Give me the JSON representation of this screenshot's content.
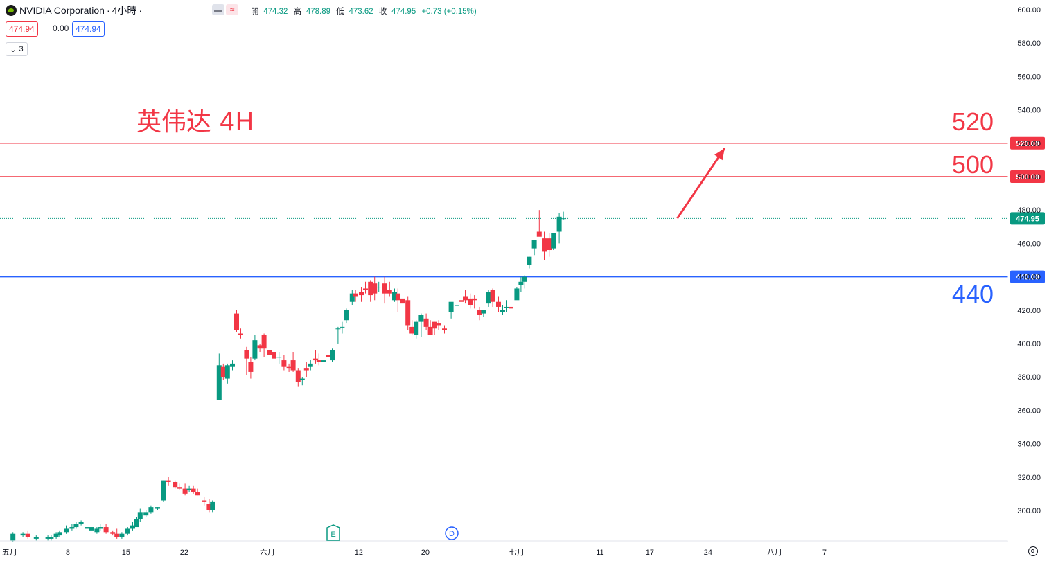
{
  "header": {
    "symbol": "NVIDIA Corporation",
    "interval": "4小時",
    "ohlc": {
      "open_label": "開=",
      "open": "474.32",
      "high_label": "高=",
      "high": "478.89",
      "low_label": "低=",
      "low": "473.62",
      "close_label": "收=",
      "close": "474.95",
      "change": "+0.73 (+0.15%)"
    },
    "sell_price": "474.94",
    "spread": "0.00",
    "buy_price": "474.94",
    "layers_count": "3",
    "compare_icon": "minus-icon",
    "indicator_icon": "wave-icon"
  },
  "colors": {
    "up": "#089981",
    "down": "#f23645",
    "resistance_line": "#f23645",
    "support_line": "#2962ff",
    "arrow": "#f23645",
    "annotation_red": "#f23645",
    "annotation_blue": "#2962ff"
  },
  "annotations": {
    "title": "英伟达 4H",
    "label_520": "520",
    "label_500": "500",
    "label_440": "440",
    "event_e": "E",
    "event_d": "D"
  },
  "chart_data": {
    "type": "candlestick",
    "ylim": [
      284,
      604
    ],
    "y_ticks": [
      "600.00",
      "580.00",
      "560.00",
      "540.00",
      "520.00",
      "500.00",
      "480.00",
      "460.00",
      "440.00",
      "420.00",
      "400.00",
      "380.00",
      "360.00",
      "340.00",
      "320.00",
      "300.00"
    ],
    "x_tick_labels": [
      "24",
      "五月",
      "8",
      "15",
      "22",
      "六月",
      "12",
      "20",
      "七月",
      "11",
      "17",
      "24",
      "八月",
      "7"
    ],
    "x_ticks": [
      {
        "label": "24",
        "day": -7
      },
      {
        "label": "五月",
        "day": 1
      },
      {
        "label": "8",
        "day": 8
      },
      {
        "label": "15",
        "day": 15
      },
      {
        "label": "22",
        "day": 22
      },
      {
        "label": "六月",
        "day": 32
      },
      {
        "label": "12",
        "day": 43
      },
      {
        "label": "20",
        "day": 51
      },
      {
        "label": "七月",
        "day": 62
      },
      {
        "label": "11",
        "day": 72
      },
      {
        "label": "17",
        "day": 78
      },
      {
        "label": "24",
        "day": 85
      },
      {
        "label": "八月",
        "day": 93
      },
      {
        "label": "7",
        "day": 99
      }
    ],
    "horizontal_lines": [
      {
        "value": 520,
        "label": "520.00",
        "color": "#f23645"
      },
      {
        "value": 500,
        "label": "500.00",
        "color": "#f23645"
      },
      {
        "value": 440,
        "label": "440.00",
        "color": "#2962ff"
      }
    ],
    "last_price": {
      "value": 474.95,
      "label": "474.95",
      "color": "#089981"
    },
    "arrow": {
      "from": {
        "day": 81.3,
        "value": 475
      },
      "to": {
        "day": 87,
        "value": 517
      }
    },
    "events": [
      {
        "label": "E",
        "day": 24.3
      },
      {
        "label": "D",
        "day": 39.6
      }
    ],
    "candles": [
      [
        1.4,
        282,
        287,
        281,
        286
      ],
      [
        2.6,
        285,
        287,
        284,
        286
      ],
      [
        3.2,
        286,
        288,
        283,
        284
      ],
      [
        4.2,
        283,
        285,
        282,
        284
      ],
      [
        5.6,
        283,
        285,
        282,
        284
      ],
      [
        6.0,
        283,
        285,
        282,
        284
      ],
      [
        6.6,
        284,
        287,
        283,
        286
      ],
      [
        7.0,
        285,
        288,
        284,
        287
      ],
      [
        7.8,
        287,
        291,
        286,
        289
      ],
      [
        8.5,
        289,
        292,
        288,
        290
      ],
      [
        9.0,
        290,
        293,
        289,
        292
      ],
      [
        9.6,
        292,
        294,
        291,
        293
      ],
      [
        10.3,
        289,
        291,
        288,
        290
      ],
      [
        10.8,
        288,
        291,
        287,
        290
      ],
      [
        11.5,
        287,
        290,
        286,
        289
      ],
      [
        11.9,
        289,
        292,
        288,
        290
      ],
      [
        12.6,
        290,
        292,
        286,
        287
      ],
      [
        13.4,
        287,
        288,
        285,
        286
      ],
      [
        13.9,
        286,
        289,
        283,
        284
      ],
      [
        14.5,
        284,
        287,
        283,
        286
      ],
      [
        15.2,
        286,
        290,
        285,
        289
      ],
      [
        15.8,
        289,
        293,
        288,
        291
      ],
      [
        16.3,
        290,
        296,
        290,
        295
      ],
      [
        16.7,
        295,
        301,
        293,
        299
      ],
      [
        17.4,
        297,
        300,
        296,
        299
      ],
      [
        18.0,
        299,
        303,
        298,
        302
      ],
      [
        18.8,
        301,
        302,
        300,
        302
      ],
      [
        19.5,
        306,
        318,
        305,
        318
      ],
      [
        20.1,
        318,
        320,
        315,
        317
      ],
      [
        20.9,
        317,
        318,
        313,
        314
      ],
      [
        21.4,
        314,
        316,
        312,
        313
      ],
      [
        22.1,
        313,
        316,
        309,
        310
      ],
      [
        22.6,
        312,
        315,
        311,
        313
      ],
      [
        23.1,
        313,
        315,
        310,
        311
      ],
      [
        23.6,
        311,
        313,
        309,
        309
      ],
      [
        24.4,
        306,
        308,
        303,
        305
      ],
      [
        25.0,
        304,
        307,
        299,
        300
      ],
      [
        25.4,
        300,
        306,
        299,
        305
      ],
      [
        26.2,
        366,
        394,
        367,
        387
      ],
      [
        26.7,
        386,
        388,
        378,
        380
      ],
      [
        27.2,
        379,
        388,
        376,
        387
      ],
      [
        27.8,
        386,
        390,
        384,
        388
      ],
      [
        28.3,
        418,
        420,
        407,
        408
      ],
      [
        28.8,
        406,
        409,
        403,
        405
      ],
      [
        29.5,
        396,
        398,
        381,
        391
      ],
      [
        30.0,
        389,
        392,
        379,
        383
      ],
      [
        30.5,
        391,
        405,
        390,
        402
      ],
      [
        31.1,
        399,
        400,
        395,
        397
      ],
      [
        31.6,
        405,
        406,
        392,
        397
      ],
      [
        32.3,
        396,
        398,
        391,
        393
      ],
      [
        32.8,
        395,
        398,
        390,
        391
      ],
      [
        33.4,
        392,
        395,
        388,
        392
      ],
      [
        34.0,
        390,
        393,
        384,
        386
      ],
      [
        34.6,
        386,
        388,
        383,
        385
      ],
      [
        35.1,
        390,
        395,
        383,
        384
      ],
      [
        35.7,
        384,
        385,
        374,
        377
      ],
      [
        36.2,
        378,
        380,
        375,
        379
      ],
      [
        36.7,
        385,
        389,
        380,
        384
      ],
      [
        37.2,
        386,
        390,
        384,
        388
      ],
      [
        37.8,
        391,
        396,
        388,
        390
      ],
      [
        38.2,
        390,
        394,
        387,
        389
      ],
      [
        38.8,
        389,
        393,
        385,
        390
      ],
      [
        39.3,
        393,
        396,
        388,
        392
      ],
      [
        39.8,
        390,
        397,
        389,
        396
      ],
      [
        40.5,
        409,
        410,
        400,
        409
      ],
      [
        41.0,
        410,
        413,
        406,
        410
      ],
      [
        41.5,
        414,
        421,
        412,
        420
      ],
      [
        42.2,
        425,
        432,
        423,
        430
      ],
      [
        42.6,
        430,
        432,
        425,
        428
      ],
      [
        43.3,
        431,
        434,
        425,
        429
      ],
      [
        43.8,
        433,
        437,
        430,
        432
      ],
      [
        44.4,
        437,
        438,
        425,
        429
      ],
      [
        44.9,
        436,
        440,
        426,
        430
      ],
      [
        45.4,
        434,
        437,
        431,
        434
      ],
      [
        46.1,
        436,
        440,
        424,
        430
      ],
      [
        46.7,
        432,
        437,
        428,
        430
      ],
      [
        47.3,
        426,
        433,
        425,
        431
      ],
      [
        47.7,
        430,
        433,
        419,
        426
      ],
      [
        48.3,
        427,
        428,
        416,
        424
      ],
      [
        48.9,
        426,
        428,
        408,
        411
      ],
      [
        49.4,
        410,
        414,
        405,
        406
      ],
      [
        49.9,
        405,
        414,
        403,
        413
      ],
      [
        50.5,
        413,
        418,
        404,
        417
      ],
      [
        51.1,
        415,
        418,
        408,
        410
      ],
      [
        51.6,
        410,
        414,
        405,
        405
      ],
      [
        52.1,
        413,
        413,
        405,
        409
      ],
      [
        52.6,
        412,
        414,
        408,
        411
      ],
      [
        53.3,
        409,
        411,
        406,
        408
      ],
      [
        54.1,
        419,
        424,
        415,
        425
      ],
      [
        54.8,
        423,
        425,
        421,
        423
      ],
      [
        55.3,
        426,
        428,
        420,
        425
      ],
      [
        55.8,
        428,
        432,
        424,
        426
      ],
      [
        56.4,
        427,
        430,
        421,
        423
      ],
      [
        56.9,
        427,
        429,
        421,
        426
      ],
      [
        57.5,
        420,
        422,
        414,
        417
      ],
      [
        58.0,
        418,
        420,
        416,
        420
      ],
      [
        58.6,
        424,
        432,
        422,
        431
      ],
      [
        59.1,
        432,
        433,
        422,
        425
      ],
      [
        59.8,
        425,
        428,
        419,
        422
      ],
      [
        60.3,
        419,
        423,
        417,
        420
      ],
      [
        60.8,
        422,
        426,
        419,
        422
      ],
      [
        61.3,
        422,
        425,
        419,
        421
      ],
      [
        62.0,
        426,
        434,
        427,
        433
      ],
      [
        62.5,
        435,
        440,
        431,
        437
      ],
      [
        62.9,
        437,
        441,
        433,
        440
      ],
      [
        63.5,
        447,
        452,
        445,
        452
      ],
      [
        64.1,
        457,
        462,
        453,
        462
      ],
      [
        64.7,
        467,
        480,
        465,
        464
      ],
      [
        65.3,
        463,
        467,
        450,
        455
      ],
      [
        65.9,
        463,
        466,
        452,
        456
      ],
      [
        66.4,
        457,
        466,
        456,
        466
      ],
      [
        67.1,
        467,
        478,
        460,
        476
      ],
      [
        67.6,
        475,
        479,
        474,
        475
      ]
    ]
  }
}
